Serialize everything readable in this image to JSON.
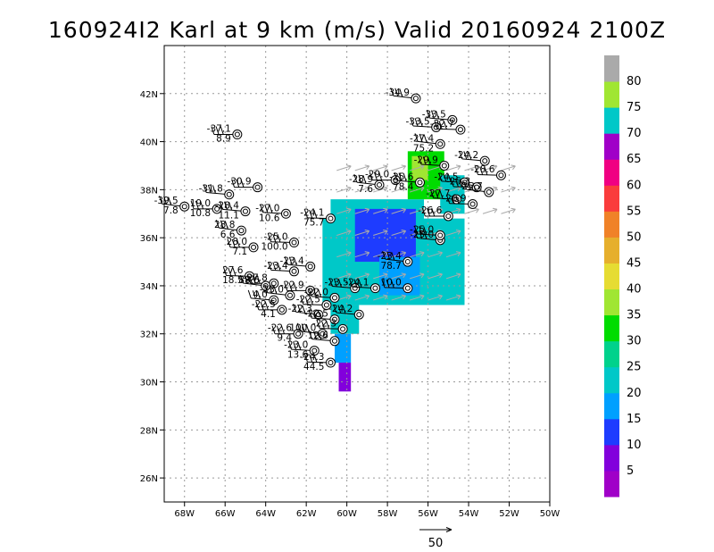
{
  "chart_data": {
    "type": "heatmap",
    "title": "160924I2 Karl at 9 km (m/s) Valid 20160924  2100Z",
    "xlabel": "",
    "ylabel": "",
    "xlim": [
      -69,
      -50
    ],
    "ylim": [
      25,
      44
    ],
    "x_ticks": [
      -68,
      -66,
      -64,
      -62,
      -60,
      -58,
      -56,
      -54,
      -52,
      -50
    ],
    "x_tick_labels": [
      "68W",
      "66W",
      "64W",
      "62W",
      "60W",
      "58W",
      "56W",
      "54W",
      "52W",
      "50W"
    ],
    "y_ticks": [
      26,
      28,
      30,
      32,
      34,
      36,
      38,
      40,
      42
    ],
    "y_tick_labels": [
      "26N",
      "28N",
      "30N",
      "32N",
      "34N",
      "36N",
      "38N",
      "40N",
      "42N"
    ],
    "grid": true,
    "colorbar": {
      "position": "right",
      "bins": [
        {
          "color": "#a000c8"
        },
        {
          "color": "#8200dc",
          "label": "5"
        },
        {
          "color": "#1e3cff",
          "label": "10"
        },
        {
          "color": "#00a0ff",
          "label": "15"
        },
        {
          "color": "#00c8c8",
          "label": "20"
        },
        {
          "color": "#00d28c",
          "label": "25"
        },
        {
          "color": "#00dc00",
          "label": "30"
        },
        {
          "color": "#a0e632",
          "label": "35"
        },
        {
          "color": "#e6dc32",
          "label": "40"
        },
        {
          "color": "#e6af2d",
          "label": "45"
        },
        {
          "color": "#f08228",
          "label": "50"
        },
        {
          "color": "#fa3c3c",
          "label": "55"
        },
        {
          "color": "#f00082",
          "label": "60"
        },
        {
          "color": "#a000c8",
          "label": "65"
        },
        {
          "color": "#00c8c8",
          "label": "70"
        },
        {
          "color": "#a0e632",
          "label": "75"
        },
        {
          "color": "#aaaaaa",
          "label": "80"
        }
      ]
    },
    "wind_field": [
      {
        "lon_min": -61.2,
        "lon_max": -54.2,
        "lat_min": 33.2,
        "lat_max": 36.8,
        "speed": 24
      },
      {
        "lon_min": -60.8,
        "lon_max": -56.2,
        "lat_min": 36.4,
        "lat_max": 37.6,
        "speed": 22
      },
      {
        "lon_min": -59.6,
        "lon_max": -56.6,
        "lat_min": 35.0,
        "lat_max": 37.2,
        "speed": 13
      },
      {
        "lon_min": -58.4,
        "lon_max": -56.4,
        "lat_min": 33.6,
        "lat_max": 35.2,
        "speed": 18
      },
      {
        "lon_min": -60.8,
        "lon_max": -59.4,
        "lat_min": 32.0,
        "lat_max": 33.2,
        "speed": 20
      },
      {
        "lon_min": -60.6,
        "lon_max": -59.8,
        "lat_min": 30.8,
        "lat_max": 32.0,
        "speed": 16
      },
      {
        "lon_min": -60.4,
        "lon_max": -59.8,
        "lat_min": 29.6,
        "lat_max": 30.8,
        "speed": 9
      },
      {
        "lon_min": -57.0,
        "lon_max": -55.2,
        "lat_min": 37.6,
        "lat_max": 39.6,
        "speed": 33
      },
      {
        "lon_min": -56.8,
        "lon_max": -56.0,
        "lat_min": 38.4,
        "lat_max": 39.4,
        "speed": 38
      },
      {
        "lon_min": -55.4,
        "lon_max": -54.2,
        "lat_min": 37.0,
        "lat_max": 38.6,
        "speed": 22
      }
    ],
    "observations": [
      {
        "lon": -56.6,
        "lat": 41.8,
        "labels": [
          "-34.9"
        ]
      },
      {
        "lon": -54.8,
        "lat": 40.9,
        "labels": [
          "-33.5"
        ]
      },
      {
        "lon": -55.6,
        "lat": 40.6,
        "labels": [
          "-33.5"
        ]
      },
      {
        "lon": -54.4,
        "lat": 40.5,
        "labels": [
          "-32.7"
        ]
      },
      {
        "lon": -65.4,
        "lat": 40.3,
        "labels": [
          "-37.1",
          "8.9"
        ]
      },
      {
        "lon": -55.4,
        "lat": 39.9,
        "labels": [
          "-27.4",
          "75.2"
        ]
      },
      {
        "lon": -53.2,
        "lat": 39.2,
        "labels": [
          "-24.2"
        ]
      },
      {
        "lon": -55.2,
        "lat": 39.0,
        "labels": [
          "-29.9"
        ]
      },
      {
        "lon": -52.4,
        "lat": 38.6,
        "labels": [
          "-28.6"
        ]
      },
      {
        "lon": -57.6,
        "lat": 38.4,
        "labels": [
          "-29.0"
        ]
      },
      {
        "lon": -58.4,
        "lat": 38.2,
        "labels": [
          "-28.9",
          "7.6"
        ]
      },
      {
        "lon": -56.4,
        "lat": 38.3,
        "labels": [
          "-25.6",
          "78.4"
        ]
      },
      {
        "lon": -54.2,
        "lat": 38.3,
        "labels": [
          "-24.5"
        ]
      },
      {
        "lon": -53.6,
        "lat": 38.1,
        "labels": [
          "-25.3"
        ]
      },
      {
        "lon": -64.4,
        "lat": 38.1,
        "labels": [
          "-30.9"
        ]
      },
      {
        "lon": -53.0,
        "lat": 37.9,
        "labels": [
          "-25.7"
        ]
      },
      {
        "lon": -65.8,
        "lat": 37.8,
        "labels": [
          "-31.8"
        ]
      },
      {
        "lon": -54.6,
        "lat": 37.6,
        "labels": [
          "-27.7"
        ]
      },
      {
        "lon": -53.8,
        "lat": 37.4,
        "labels": [
          "-26.9"
        ]
      },
      {
        "lon": -66.4,
        "lat": 37.2,
        "labels": [
          "19.0",
          "10.8"
        ]
      },
      {
        "lon": -68.0,
        "lat": 37.3,
        "labels": [
          "-39.5",
          "7.8"
        ]
      },
      {
        "lon": -65.0,
        "lat": 37.1,
        "labels": [
          "-28.4",
          "11.1"
        ]
      },
      {
        "lon": -63.0,
        "lat": 37.0,
        "labels": [
          "-27.0",
          "10.6"
        ]
      },
      {
        "lon": -60.8,
        "lat": 36.8,
        "labels": [
          "-24.1",
          "75.7"
        ]
      },
      {
        "lon": -55.0,
        "lat": 36.9,
        "labels": [
          "-26.6"
        ]
      },
      {
        "lon": -65.2,
        "lat": 36.3,
        "labels": [
          "28.8",
          "6.6"
        ]
      },
      {
        "lon": -55.4,
        "lat": 35.9,
        "labels": [
          "-25.0"
        ]
      },
      {
        "lon": -55.4,
        "lat": 36.1,
        "labels": [
          "-25.0"
        ]
      },
      {
        "lon": -62.6,
        "lat": 35.8,
        "labels": [
          "-25.0",
          "100.0"
        ]
      },
      {
        "lon": -64.6,
        "lat": 35.6,
        "labels": [
          "28.0",
          "7.1"
        ]
      },
      {
        "lon": -57.0,
        "lat": 35.0,
        "labels": [
          "-23.4",
          "78.7"
        ]
      },
      {
        "lon": -61.8,
        "lat": 34.8,
        "labels": [
          "-23.4"
        ]
      },
      {
        "lon": -62.6,
        "lat": 34.6,
        "labels": [
          "-23.4"
        ]
      },
      {
        "lon": -64.8,
        "lat": 34.4,
        "labels": [
          "27.6",
          "18.5"
        ]
      },
      {
        "lon": -63.6,
        "lat": 34.1,
        "labels": [
          "-27.8"
        ]
      },
      {
        "lon": -64.0,
        "lat": 34.0,
        "labels": [
          "88.6"
        ]
      },
      {
        "lon": -59.6,
        "lat": 33.9,
        "labels": [
          "-23.5"
        ]
      },
      {
        "lon": -58.6,
        "lat": 33.9,
        "labels": [
          "-24.1"
        ]
      },
      {
        "lon": -57.0,
        "lat": 33.9,
        "labels": [
          "10.0"
        ]
      },
      {
        "lon": -61.8,
        "lat": 33.8,
        "labels": [
          "-22.9"
        ]
      },
      {
        "lon": -62.8,
        "lat": 33.6,
        "labels": [
          "-23.0"
        ]
      },
      {
        "lon": -63.6,
        "lat": 33.4,
        "labels": [
          "4.0"
        ]
      },
      {
        "lon": -60.6,
        "lat": 33.5,
        "labels": [
          "-22.0"
        ]
      },
      {
        "lon": -61.0,
        "lat": 33.2,
        "labels": [
          "-22.5"
        ]
      },
      {
        "lon": -63.2,
        "lat": 33.0,
        "labels": [
          "-22.5",
          "4.1"
        ]
      },
      {
        "lon": -61.4,
        "lat": 32.8,
        "labels": [
          "-22.3"
        ]
      },
      {
        "lon": -59.4,
        "lat": 32.8,
        "labels": [
          "-24.2"
        ]
      },
      {
        "lon": -60.6,
        "lat": 32.6,
        "labels": [
          "-22.5"
        ]
      },
      {
        "lon": -60.2,
        "lat": 32.2,
        "labels": [
          "-22.3"
        ]
      },
      {
        "lon": -62.4,
        "lat": 32.0,
        "labels": [
          "-22.6",
          "9.4"
        ]
      },
      {
        "lon": -61.2,
        "lat": 32.0,
        "labels": [
          "100.0"
        ]
      },
      {
        "lon": -60.6,
        "lat": 31.7,
        "labels": [
          "12.6"
        ]
      },
      {
        "lon": -61.6,
        "lat": 31.3,
        "labels": [
          "-23.0",
          "13.6"
        ]
      },
      {
        "lon": -60.8,
        "lat": 30.8,
        "labels": [
          "-24.3",
          "44.5"
        ]
      }
    ]
  },
  "reference_vector": {
    "label": "50"
  }
}
